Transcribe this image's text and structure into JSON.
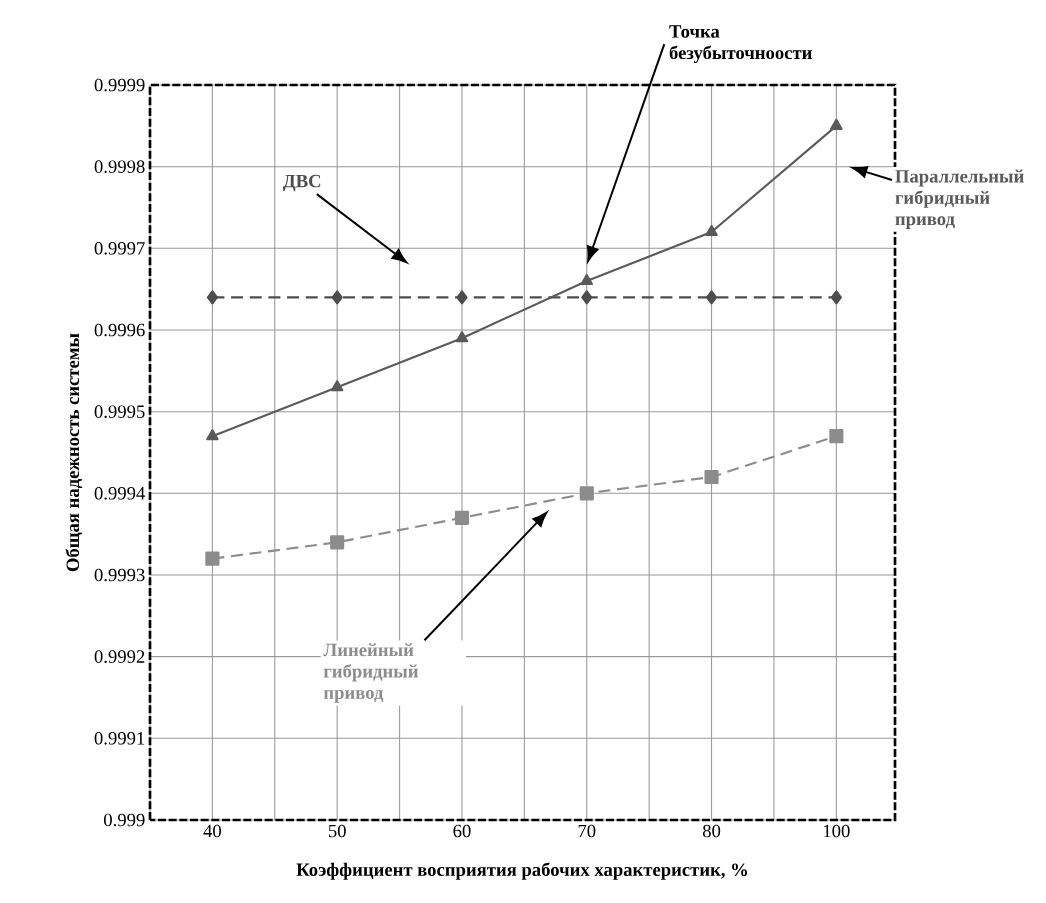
{
  "chart_data": {
    "type": "line",
    "xlabel": "Коэффициент восприятия рабочих характеристик, %",
    "ylabel": "Общая надежность системы",
    "categories": [
      "40",
      "50",
      "60",
      "70",
      "80",
      "100"
    ],
    "ylim": [
      0.999,
      0.9999
    ],
    "yticks": [
      0.999,
      0.9991,
      0.9992,
      0.9993,
      0.9994,
      0.9995,
      0.9996,
      0.9997,
      0.9998,
      0.9999
    ],
    "grid": true,
    "legend": false,
    "series": [
      {
        "name": "ДВС",
        "color": "#4d4d4d",
        "marker": "diamond",
        "line_style": "dashed",
        "values": [
          0.99964,
          0.99964,
          0.99964,
          0.99964,
          0.99964,
          0.99964
        ]
      },
      {
        "name": "Параллельный гибридный привод",
        "color": "#5a5a5a",
        "marker": "triangle",
        "line_style": "solid",
        "values": [
          0.99947,
          0.99953,
          0.99959,
          0.99966,
          0.99972,
          0.99985
        ]
      },
      {
        "name": "Линейный гибридный привод",
        "color": "#8c8c8c",
        "marker": "square",
        "line_style": "dashed",
        "values": [
          0.99932,
          0.99934,
          0.99937,
          0.9994,
          0.99942,
          0.99947
        ]
      }
    ],
    "annotations": [
      "Точка безубыточноости"
    ]
  }
}
